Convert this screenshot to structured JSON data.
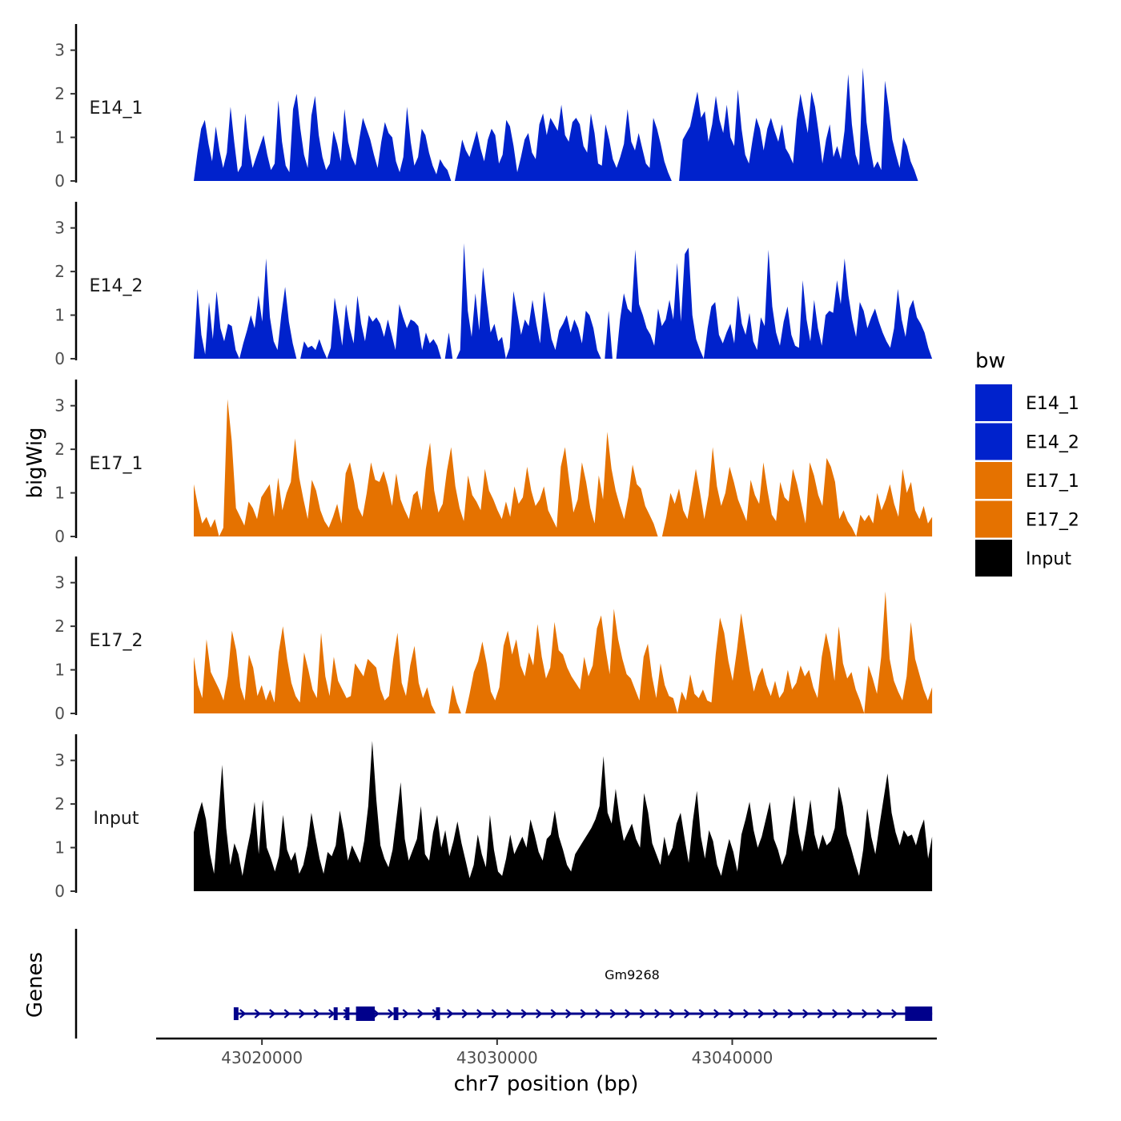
{
  "chart_data": {
    "type": "area",
    "x_axis": {
      "title": "chr7 position (bp)",
      "range": [
        43015500,
        43048700
      ],
      "ticks": [
        43020000,
        43030000,
        43040000
      ],
      "tick_labels": [
        "43020000",
        "43030000",
        "43040000"
      ]
    },
    "y_axis": {
      "title": "bigWig",
      "range": [
        0,
        3.6
      ],
      "ticks": [
        0,
        1,
        2,
        3
      ],
      "tick_labels": [
        "0",
        "1",
        "2",
        "3"
      ]
    },
    "tracks_title": "Genes",
    "legend": {
      "title": "bw",
      "position": "right",
      "entries": [
        {
          "label": "E14_1",
          "color": "#0022CC"
        },
        {
          "label": "E14_2",
          "color": "#0022CC"
        },
        {
          "label": "E17_1",
          "color": "#E57200"
        },
        {
          "label": "E17_2",
          "color": "#E57200"
        },
        {
          "label": "Input",
          "color": "#000000"
        }
      ]
    },
    "series": [
      {
        "name": "E14_1",
        "color": "#0022CC",
        "x_start": 43017100,
        "x_end": 43047900,
        "values": [
          0.0,
          0.65,
          1.2,
          1.4,
          0.85,
          0.45,
          1.25,
          0.7,
          0.3,
          0.65,
          1.7,
          0.9,
          0.2,
          0.35,
          1.55,
          0.75,
          0.3,
          0.55,
          0.8,
          1.05,
          0.6,
          0.25,
          0.4,
          1.85,
          0.9,
          0.35,
          0.2,
          1.65,
          2.0,
          1.2,
          0.6,
          0.3,
          1.5,
          1.95,
          1.05,
          0.55,
          0.25,
          0.4,
          1.15,
          0.85,
          0.45,
          1.65,
          0.9,
          0.55,
          0.35,
          0.95,
          1.45,
          1.2,
          0.95,
          0.6,
          0.3,
          0.9,
          1.35,
          1.1,
          1.0,
          0.45,
          0.2,
          0.55,
          1.7,
          0.9,
          0.35,
          0.55,
          1.2,
          1.05,
          0.65,
          0.35,
          0.15,
          0.5,
          0.35,
          0.25,
          0.0,
          0.0,
          0.45,
          0.95,
          0.7,
          0.55,
          0.85,
          1.15,
          0.75,
          0.45,
          0.95,
          1.2,
          1.05,
          0.4,
          0.6,
          1.4,
          1.25,
          0.8,
          0.2,
          0.55,
          0.95,
          1.1,
          0.65,
          0.5,
          1.3,
          1.55,
          1.05,
          1.45,
          1.3,
          1.15,
          1.75,
          1.05,
          0.9,
          1.35,
          1.45,
          1.3,
          0.8,
          0.65,
          1.55,
          1.1,
          0.4,
          0.35,
          1.3,
          0.95,
          0.5,
          0.3,
          0.55,
          0.85,
          1.65,
          0.9,
          0.7,
          1.1,
          0.75,
          0.4,
          0.3,
          1.45,
          1.2,
          0.85,
          0.45,
          0.2,
          0.0,
          0.0,
          0.0,
          0.95,
          1.1,
          1.25,
          1.65,
          2.05,
          1.45,
          1.6,
          0.9,
          1.3,
          1.95,
          1.4,
          1.1,
          1.75,
          1.0,
          0.8,
          2.1,
          1.2,
          0.6,
          0.4,
          0.95,
          1.45,
          1.2,
          0.7,
          1.2,
          1.45,
          1.15,
          0.9,
          1.3,
          0.75,
          0.6,
          0.4,
          1.4,
          2.0,
          1.55,
          1.1,
          2.05,
          1.7,
          1.1,
          0.4,
          0.95,
          1.3,
          0.55,
          0.8,
          0.5,
          1.15,
          2.45,
          1.3,
          0.6,
          0.35,
          2.6,
          1.35,
          0.75,
          0.3,
          0.45,
          0.25,
          2.3,
          1.7,
          0.95,
          0.6,
          0.3,
          1.0,
          0.8,
          0.45,
          0.25,
          0.0
        ]
      },
      {
        "name": "E14_2",
        "color": "#0022CC",
        "x_start": 43017100,
        "x_end": 43048500,
        "values": [
          0.0,
          1.6,
          0.55,
          0.1,
          1.3,
          0.45,
          1.55,
          0.7,
          0.4,
          0.8,
          0.75,
          0.2,
          0.0,
          0.35,
          0.65,
          1.0,
          0.7,
          1.45,
          0.85,
          2.3,
          0.95,
          0.4,
          0.2,
          1.0,
          1.65,
          0.85,
          0.35,
          0.0,
          0.0,
          0.4,
          0.25,
          0.3,
          0.2,
          0.45,
          0.2,
          0.0,
          0.25,
          1.4,
          0.9,
          0.3,
          1.25,
          0.7,
          0.35,
          1.45,
          0.8,
          0.4,
          1.0,
          0.85,
          0.95,
          0.8,
          0.5,
          0.9,
          0.55,
          0.2,
          1.25,
          0.95,
          0.7,
          0.9,
          0.85,
          0.75,
          0.2,
          0.6,
          0.35,
          0.45,
          0.3,
          0.0,
          0.0,
          0.6,
          0.0,
          0.0,
          0.2,
          2.65,
          1.1,
          0.5,
          1.5,
          0.65,
          2.1,
          1.3,
          0.6,
          0.8,
          0.4,
          0.5,
          0.0,
          0.25,
          1.55,
          1.05,
          0.55,
          0.9,
          0.75,
          1.35,
          0.8,
          0.35,
          1.55,
          1.0,
          0.45,
          0.2,
          0.65,
          0.8,
          1.0,
          0.6,
          0.9,
          0.7,
          0.35,
          1.1,
          1.0,
          0.7,
          0.2,
          0.0,
          0.0,
          1.1,
          0.0,
          0.0,
          0.9,
          1.5,
          1.15,
          1.05,
          2.5,
          1.25,
          1.0,
          0.7,
          0.55,
          0.3,
          1.15,
          0.75,
          0.9,
          1.35,
          0.9,
          2.2,
          0.85,
          2.4,
          2.55,
          1.0,
          0.45,
          0.2,
          0.0,
          0.7,
          1.2,
          1.3,
          0.55,
          0.35,
          0.6,
          0.8,
          0.35,
          1.45,
          0.8,
          0.55,
          1.05,
          0.4,
          0.2,
          0.95,
          0.75,
          2.5,
          1.2,
          0.6,
          0.3,
          0.85,
          1.2,
          0.55,
          0.3,
          0.25,
          1.8,
          0.9,
          0.4,
          1.35,
          0.7,
          0.3,
          1.0,
          1.1,
          1.05,
          1.8,
          1.25,
          2.3,
          1.45,
          0.9,
          0.5,
          1.3,
          1.1,
          0.7,
          0.95,
          1.15,
          0.85,
          0.6,
          0.4,
          0.25,
          0.7,
          1.6,
          0.9,
          0.5,
          1.15,
          1.35,
          0.95,
          0.8,
          0.6,
          0.25,
          0.0
        ]
      },
      {
        "name": "E17_1",
        "color": "#E57200",
        "x_start": 43017100,
        "x_end": 43048500,
        "values": [
          1.2,
          0.7,
          0.3,
          0.45,
          0.2,
          0.4,
          0.0,
          0.2,
          3.15,
          2.2,
          0.65,
          0.45,
          0.25,
          0.8,
          0.65,
          0.4,
          0.9,
          1.05,
          1.2,
          0.45,
          1.35,
          0.6,
          1.0,
          1.25,
          2.25,
          1.35,
          0.85,
          0.4,
          1.3,
          1.05,
          0.6,
          0.35,
          0.2,
          0.45,
          0.75,
          0.3,
          1.45,
          1.7,
          1.25,
          0.65,
          0.45,
          1.0,
          1.7,
          1.3,
          1.25,
          1.5,
          1.15,
          0.7,
          1.45,
          0.85,
          0.6,
          0.4,
          0.95,
          1.05,
          0.6,
          1.55,
          2.15,
          1.05,
          0.55,
          0.75,
          1.5,
          2.05,
          1.15,
          0.65,
          0.35,
          1.4,
          0.95,
          0.8,
          0.6,
          1.55,
          1.05,
          0.85,
          0.6,
          0.4,
          0.8,
          0.45,
          1.15,
          0.75,
          0.9,
          1.6,
          1.05,
          0.7,
          0.85,
          1.15,
          0.6,
          0.4,
          0.2,
          1.6,
          2.05,
          1.25,
          0.55,
          0.85,
          1.7,
          1.25,
          0.65,
          0.3,
          1.4,
          0.85,
          2.4,
          1.55,
          1.05,
          0.7,
          0.4,
          0.9,
          1.65,
          1.2,
          1.1,
          0.7,
          0.5,
          0.3,
          0.0,
          0.0,
          0.45,
          1.0,
          0.75,
          1.1,
          0.6,
          0.4,
          0.95,
          1.55,
          1.0,
          0.4,
          0.95,
          2.05,
          1.15,
          0.7,
          1.0,
          1.6,
          1.25,
          0.85,
          0.6,
          0.35,
          1.3,
          0.95,
          0.75,
          1.7,
          1.05,
          0.5,
          0.35,
          1.25,
          0.9,
          0.8,
          1.55,
          1.2,
          0.75,
          0.3,
          1.7,
          1.4,
          0.95,
          0.7,
          1.8,
          1.6,
          1.25,
          0.4,
          0.6,
          0.35,
          0.2,
          0.0,
          0.5,
          0.35,
          0.5,
          0.3,
          1.0,
          0.6,
          0.85,
          1.2,
          0.75,
          0.45,
          1.55,
          1.0,
          1.25,
          0.6,
          0.4,
          0.7,
          0.3,
          0.45
        ]
      },
      {
        "name": "E17_2",
        "color": "#E57200",
        "x_start": 43017100,
        "x_end": 43048500,
        "values": [
          1.3,
          0.65,
          0.35,
          1.7,
          0.95,
          0.75,
          0.55,
          0.3,
          0.85,
          1.9,
          1.45,
          0.6,
          0.3,
          1.35,
          1.05,
          0.4,
          0.65,
          0.3,
          0.55,
          0.25,
          1.4,
          2.0,
          1.25,
          0.7,
          0.4,
          0.25,
          1.4,
          1.0,
          0.55,
          0.35,
          1.85,
          0.85,
          0.4,
          1.3,
          0.75,
          0.55,
          0.35,
          0.4,
          1.15,
          1.0,
          0.85,
          1.25,
          1.15,
          1.05,
          0.55,
          0.3,
          0.4,
          1.25,
          1.85,
          0.7,
          0.4,
          1.1,
          1.55,
          0.7,
          0.35,
          0.6,
          0.2,
          0.0,
          0.0,
          0.0,
          0.0,
          0.65,
          0.25,
          0.0,
          0.0,
          0.45,
          0.95,
          1.2,
          1.65,
          1.15,
          0.5,
          0.3,
          0.6,
          1.55,
          1.9,
          1.35,
          1.7,
          1.1,
          0.85,
          1.4,
          1.1,
          2.05,
          1.3,
          0.8,
          1.05,
          2.1,
          1.45,
          1.35,
          1.05,
          0.85,
          0.7,
          0.55,
          1.3,
          0.85,
          1.1,
          1.95,
          2.25,
          1.5,
          0.9,
          2.4,
          1.7,
          1.25,
          0.9,
          0.8,
          0.55,
          0.3,
          1.3,
          1.6,
          0.85,
          0.35,
          1.15,
          0.65,
          0.4,
          0.35,
          0.0,
          0.5,
          0.3,
          0.9,
          0.45,
          0.35,
          0.55,
          0.3,
          0.25,
          1.35,
          2.2,
          1.85,
          1.2,
          0.75,
          1.45,
          2.3,
          1.65,
          1.0,
          0.5,
          0.85,
          1.05,
          0.65,
          0.4,
          0.75,
          0.35,
          0.5,
          1.0,
          0.55,
          0.7,
          1.1,
          0.85,
          1.0,
          0.6,
          0.35,
          1.3,
          1.85,
          1.4,
          0.75,
          2.0,
          1.15,
          0.8,
          0.95,
          0.55,
          0.3,
          0.0,
          1.1,
          0.8,
          0.45,
          1.3,
          2.8,
          1.25,
          0.75,
          0.5,
          0.3,
          0.85,
          2.1,
          1.25,
          0.9,
          0.55,
          0.3,
          0.6
        ]
      },
      {
        "name": "Input",
        "color": "#000000",
        "x_start": 43017100,
        "x_end": 43048500,
        "values": [
          1.35,
          1.75,
          2.05,
          1.65,
          0.85,
          0.4,
          1.6,
          2.9,
          1.45,
          0.6,
          1.1,
          0.85,
          0.35,
          0.9,
          1.35,
          2.05,
          0.85,
          2.1,
          1.0,
          0.75,
          0.45,
          0.8,
          1.75,
          0.95,
          0.7,
          0.9,
          0.4,
          0.6,
          1.05,
          1.8,
          1.25,
          0.75,
          0.4,
          0.9,
          0.8,
          1.05,
          1.85,
          1.35,
          0.7,
          1.05,
          0.85,
          0.65,
          1.15,
          1.95,
          3.45,
          2.1,
          1.05,
          0.75,
          0.55,
          0.95,
          1.7,
          2.5,
          1.2,
          0.7,
          0.95,
          1.2,
          1.95,
          0.85,
          0.7,
          1.35,
          1.75,
          1.0,
          1.4,
          0.8,
          1.15,
          1.6,
          1.1,
          0.7,
          0.3,
          0.6,
          1.3,
          0.85,
          0.55,
          1.75,
          0.95,
          0.45,
          0.35,
          0.75,
          1.3,
          0.85,
          1.05,
          1.25,
          1.0,
          1.65,
          1.3,
          0.9,
          0.7,
          1.2,
          1.3,
          1.85,
          1.25,
          0.95,
          0.6,
          0.45,
          0.85,
          1.0,
          1.15,
          1.3,
          1.45,
          1.65,
          1.95,
          3.1,
          1.8,
          1.55,
          2.35,
          1.65,
          1.15,
          1.35,
          1.55,
          1.2,
          1.0,
          2.25,
          1.8,
          1.1,
          0.85,
          0.6,
          1.25,
          0.8,
          1.0,
          1.55,
          1.8,
          1.2,
          0.65,
          1.6,
          2.3,
          1.25,
          0.75,
          1.4,
          1.15,
          0.6,
          0.35,
          0.8,
          1.2,
          0.9,
          0.45,
          1.3,
          1.65,
          2.05,
          1.4,
          1.0,
          1.25,
          1.65,
          2.05,
          1.2,
          0.95,
          0.6,
          0.85,
          1.55,
          2.2,
          1.35,
          0.9,
          1.45,
          2.1,
          1.3,
          0.95,
          1.3,
          1.05,
          1.15,
          1.45,
          2.4,
          1.95,
          1.3,
          1.0,
          0.65,
          0.35,
          0.95,
          1.9,
          1.25,
          0.85,
          1.5,
          2.1,
          2.7,
          1.8,
          1.35,
          1.05,
          1.4,
          1.25,
          1.3,
          1.05,
          1.4,
          1.65,
          0.75,
          1.25
        ]
      }
    ],
    "gene": {
      "name": "Gm9268",
      "strand": "+",
      "color": "#00008B",
      "start": 43018900,
      "end": 43048500,
      "exons": [
        [
          43018800,
          43019000
        ],
        [
          43023050,
          43023200
        ],
        [
          43023550,
          43023700
        ],
        [
          43024000,
          43024800
        ],
        [
          43025600,
          43025800
        ],
        [
          43027400,
          43027550
        ],
        [
          43047350,
          43048500
        ]
      ]
    }
  }
}
